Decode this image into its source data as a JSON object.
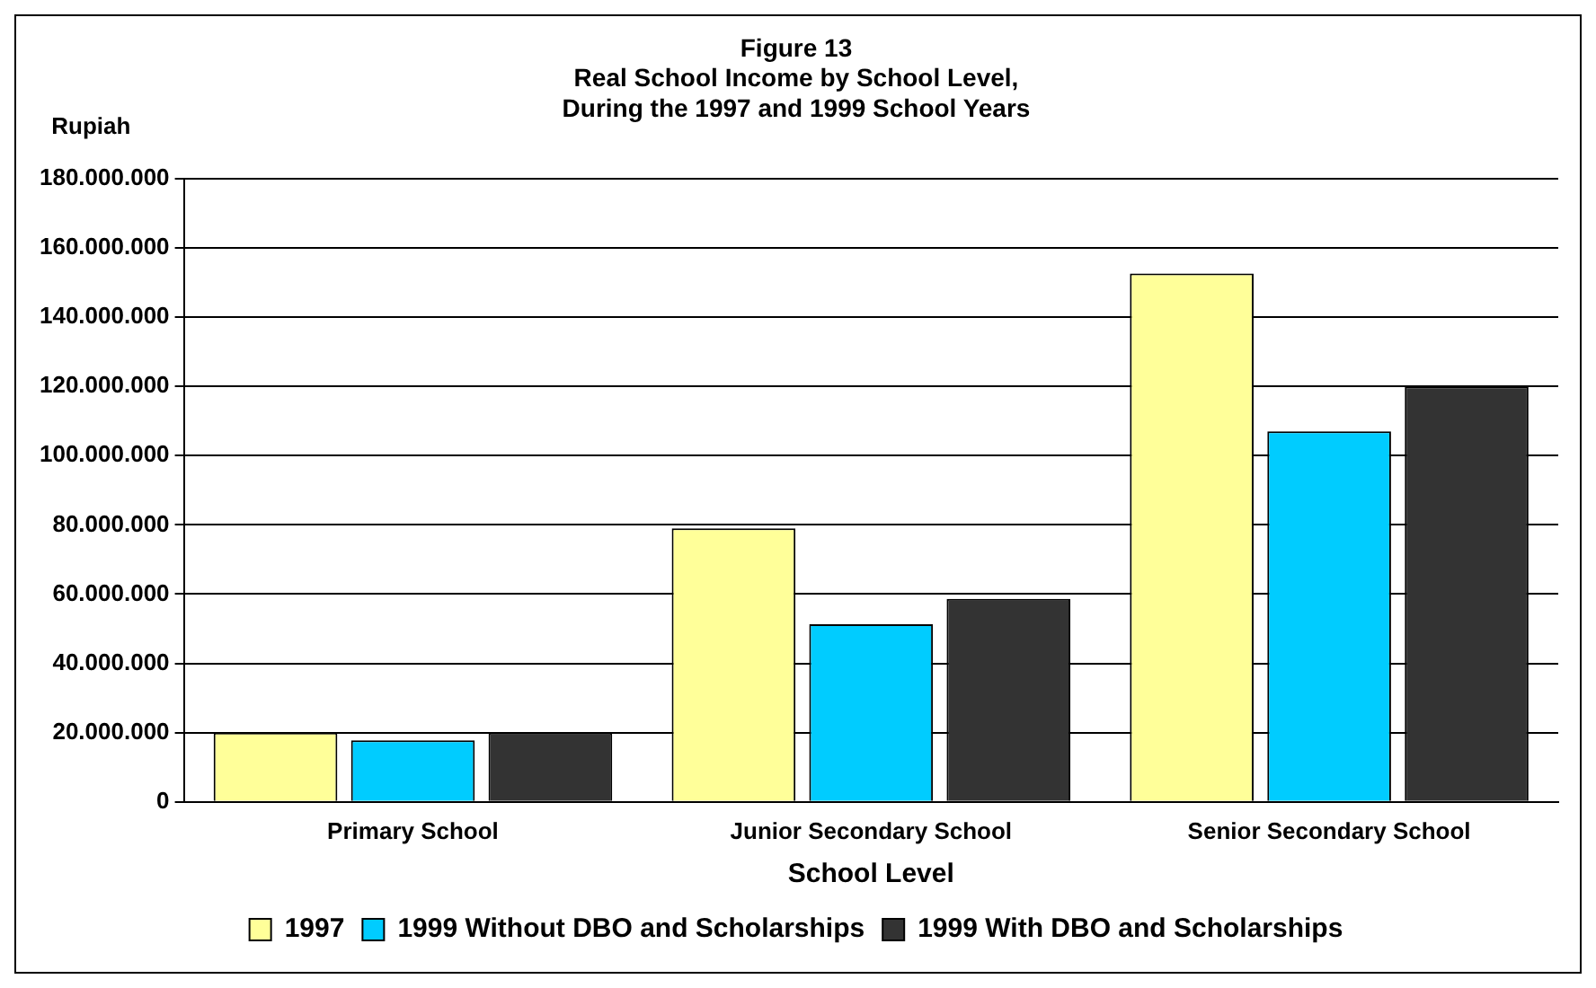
{
  "chart_data": {
    "type": "bar",
    "title": [
      "Figure 13",
      "Real School Income by School Level,",
      "During the 1997 and 1999 School Years"
    ],
    "ylabel": "Rupiah",
    "xlabel": "School Level",
    "categories": [
      "Primary School",
      "Junior Secondary School",
      "Senior Secondary School"
    ],
    "series": [
      {
        "name": "1997",
        "color": "#ffff99",
        "values": [
          20000000,
          79000000,
          152600000
        ]
      },
      {
        "name": "1999 Without DBO and Scholarships",
        "color": "#00ccff",
        "values": [
          17800000,
          51300000,
          107000000
        ]
      },
      {
        "name": "1999 With DBO and Scholarships",
        "color": "#333333",
        "values": [
          20000000,
          58600000,
          120000000
        ]
      }
    ],
    "ylim": [
      0,
      180000000
    ],
    "yticks": [
      {
        "value": 0,
        "label": "0"
      },
      {
        "value": 20000000,
        "label": "20.000.000"
      },
      {
        "value": 40000000,
        "label": "40.000.000"
      },
      {
        "value": 60000000,
        "label": "60.000.000"
      },
      {
        "value": 80000000,
        "label": "80.000.000"
      },
      {
        "value": 100000000,
        "label": "100.000.000"
      },
      {
        "value": 120000000,
        "label": "120.000.000"
      },
      {
        "value": 140000000,
        "label": "140.000.000"
      },
      {
        "value": 160000000,
        "label": "160.000.000"
      },
      {
        "value": 180000000,
        "label": "180.000.000"
      }
    ],
    "grid": "y",
    "legend": "bottom"
  }
}
